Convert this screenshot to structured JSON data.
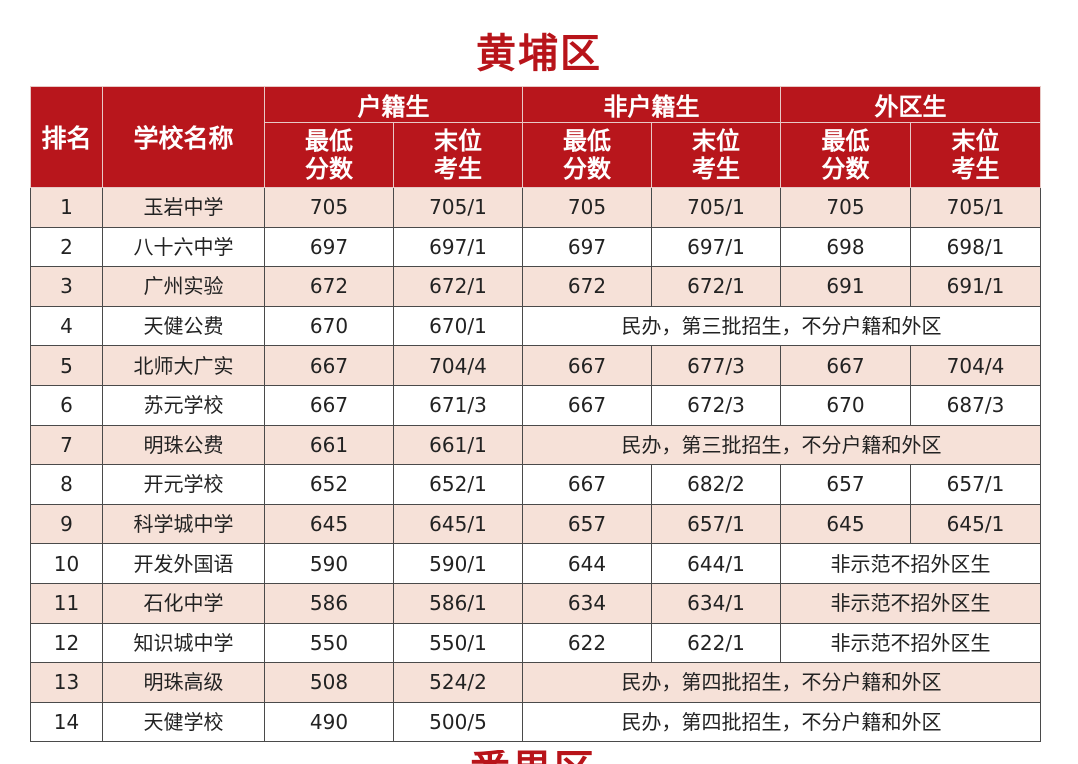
{
  "title": "黄埔区",
  "headers": {
    "rank": "排名",
    "school": "学校名称",
    "groups": [
      "户籍生",
      "非户籍生",
      "外区生"
    ],
    "min_score": [
      "最低",
      "分数"
    ],
    "last_student": [
      "末位",
      "考生"
    ]
  },
  "rows": [
    {
      "rank": "1",
      "school": "玉岩中学",
      "cells": [
        "705",
        "705/1",
        "705",
        "705/1",
        "705",
        "705/1"
      ]
    },
    {
      "rank": "2",
      "school": "八十六中学",
      "cells": [
        "697",
        "697/1",
        "697",
        "697/1",
        "698",
        "698/1"
      ]
    },
    {
      "rank": "3",
      "school": "广州实验",
      "cells": [
        "672",
        "672/1",
        "672",
        "672/1",
        "691",
        "691/1"
      ]
    },
    {
      "rank": "4",
      "school": "天健公费",
      "cells": [
        "670",
        "670/1"
      ],
      "note": "民办，第三批招生，不分户籍和外区"
    },
    {
      "rank": "5",
      "school": "北师大广实",
      "cells": [
        "667",
        "704/4",
        "667",
        "677/3",
        "667",
        "704/4"
      ]
    },
    {
      "rank": "6",
      "school": "苏元学校",
      "cells": [
        "667",
        "671/3",
        "667",
        "672/3",
        "670",
        "687/3"
      ]
    },
    {
      "rank": "7",
      "school": "明珠公费",
      "cells": [
        "661",
        "661/1"
      ],
      "note": "民办，第三批招生，不分户籍和外区"
    },
    {
      "rank": "8",
      "school": "开元学校",
      "cells": [
        "652",
        "652/1",
        "667",
        "682/2",
        "657",
        "657/1"
      ]
    },
    {
      "rank": "9",
      "school": "科学城中学",
      "cells": [
        "645",
        "645/1",
        "657",
        "657/1",
        "645",
        "645/1"
      ]
    },
    {
      "rank": "10",
      "school": "开发外国语",
      "cells": [
        "590",
        "590/1",
        "644",
        "644/1"
      ],
      "note": "非示范不招外区生"
    },
    {
      "rank": "11",
      "school": "石化中学",
      "cells": [
        "586",
        "586/1",
        "634",
        "634/1"
      ],
      "note": "非示范不招外区生"
    },
    {
      "rank": "12",
      "school": "知识城中学",
      "cells": [
        "550",
        "550/1",
        "622",
        "622/1"
      ],
      "note": "非示范不招外区生"
    },
    {
      "rank": "13",
      "school": "明珠高级",
      "cells": [
        "508",
        "524/2"
      ],
      "note": "民办，第四批招生，不分户籍和外区"
    },
    {
      "rank": "14",
      "school": "天健学校",
      "cells": [
        "490",
        "500/5"
      ],
      "note": "民办，第四批招生，不分户籍和外区"
    }
  ],
  "next_title_partial": "番禺区"
}
